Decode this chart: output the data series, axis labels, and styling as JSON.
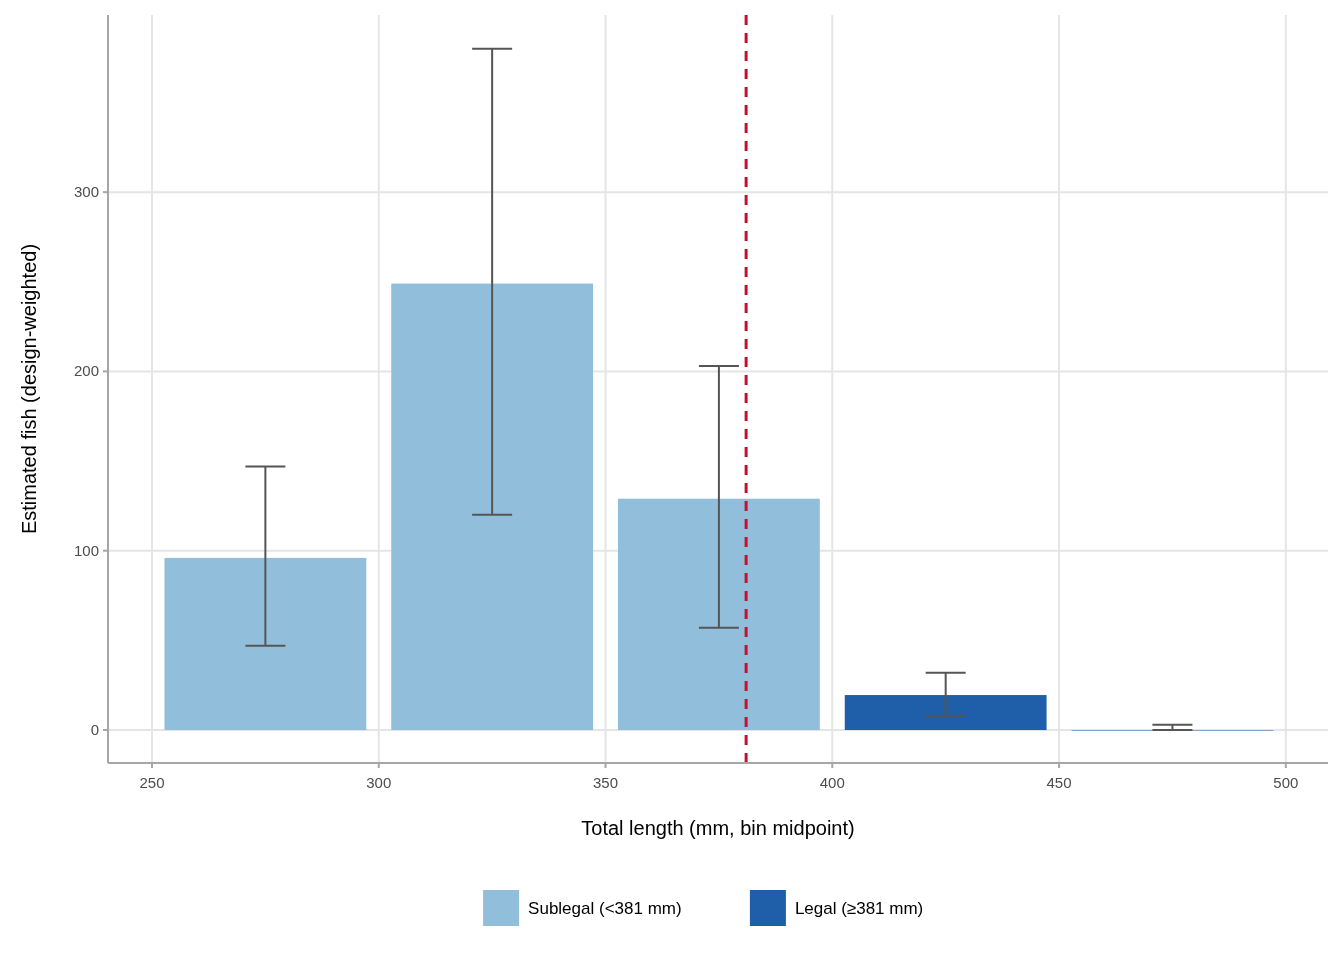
{
  "chart_data": {
    "type": "bar",
    "xlabel": "Total length (mm, bin midpoint)",
    "ylabel": "Estimated fish (design-weighted)",
    "xlim": [
      240.3,
      509.3
    ],
    "ylim": [
      -18.4,
      398.8
    ],
    "xticks": [
      250,
      300,
      350,
      400,
      450,
      500
    ],
    "yticks": [
      0,
      100,
      200,
      300
    ],
    "grid": true,
    "legend": "bottom",
    "series": [
      {
        "name": "Sublegal (<381 mm)",
        "color": "#91bfdb",
        "x": [
          275,
          325,
          375
        ],
        "values": [
          96,
          249,
          129
        ],
        "errors": [
          [
            47,
            147
          ],
          [
            120,
            380
          ],
          [
            57,
            203
          ]
        ]
      },
      {
        "name": "Legal (≥381 mm)",
        "color": "#1f5ea8",
        "x": [
          425,
          475
        ],
        "values": [
          19.5,
          0
        ],
        "errors": [
          [
            8,
            32
          ],
          [
            0,
            3
          ]
        ]
      }
    ],
    "ref_lines": [
      {
        "axis": "x",
        "value": 381,
        "color": "#c8102e",
        "line_style": "dashed"
      }
    ]
  }
}
